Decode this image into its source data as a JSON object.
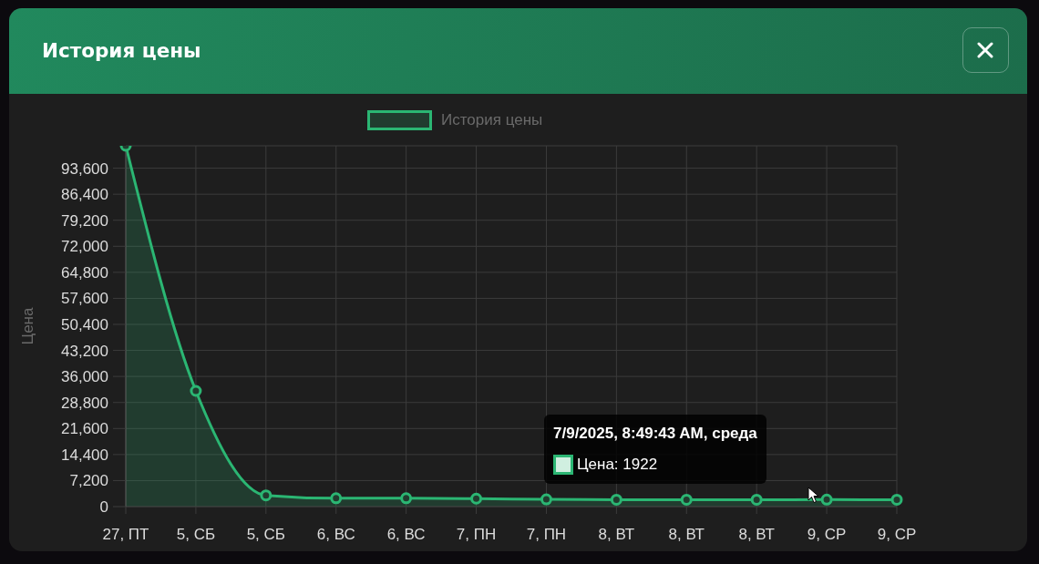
{
  "chart_data": {
    "type": "area",
    "title": "История цены",
    "ylabel": "Цена",
    "categories": [
      "27, ПТ",
      "5, СБ",
      "5, СБ",
      "6, ВС",
      "6, ВС",
      "7, ПН",
      "7, ПН",
      "8, ВТ",
      "8, ВТ",
      "8, ВТ",
      "9, СР",
      "9, СР"
    ],
    "series": [
      {
        "name": "История цены",
        "color": "#2bb673",
        "values": [
          99800,
          32000,
          3100,
          2300,
          2300,
          2200,
          2000,
          1900,
          1900,
          1900,
          1922,
          1900
        ]
      }
    ],
    "ylim": [
      0,
      99800
    ],
    "yticks": [
      0,
      {
        "value": 7200,
        "label": "7,200"
      },
      {
        "value": 14400,
        "label": "14,400"
      },
      {
        "value": 21600,
        "label": "21,600"
      },
      {
        "value": 28800,
        "label": "28,800"
      },
      {
        "value": 36000,
        "label": "36,000"
      },
      {
        "value": 43200,
        "label": "43,200"
      },
      {
        "value": 50400,
        "label": "50,400"
      },
      {
        "value": 57600,
        "label": "57,600"
      },
      {
        "value": 64800,
        "label": "64,800"
      },
      {
        "value": 72000,
        "label": "72,000"
      },
      {
        "value": 79200,
        "label": "79,200"
      },
      {
        "value": 86400,
        "label": "86,400"
      },
      {
        "value": 93600,
        "label": "93,600"
      }
    ],
    "grid": true,
    "legend": "top",
    "marker": "circle",
    "annotations": [
      "7/9/2025, 8:49:43 AM, среда",
      "Цена: 1922"
    ]
  }
}
